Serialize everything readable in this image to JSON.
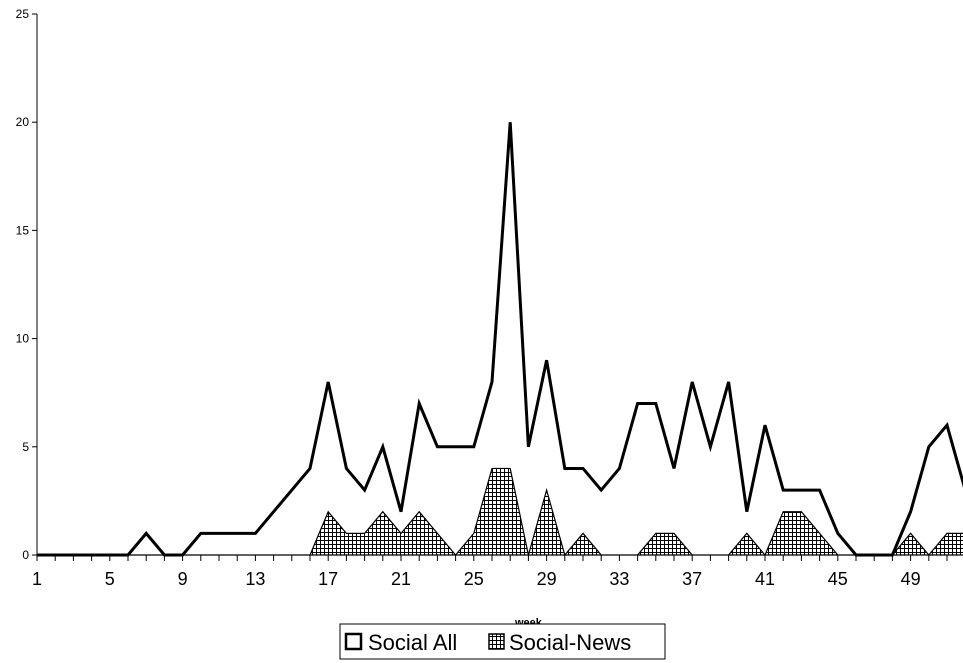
{
  "chart_data": {
    "type": "area",
    "title": "",
    "xlabel": "week",
    "ylabel": "",
    "ylim": [
      0,
      25
    ],
    "yticks": [
      0,
      5,
      10,
      15,
      20,
      25
    ],
    "x": [
      1,
      2,
      3,
      4,
      5,
      6,
      7,
      8,
      9,
      10,
      11,
      12,
      13,
      14,
      15,
      16,
      17,
      18,
      19,
      20,
      21,
      22,
      23,
      24,
      25,
      26,
      27,
      28,
      29,
      30,
      31,
      32,
      33,
      34,
      35,
      36,
      37,
      38,
      39,
      40,
      41,
      42,
      43,
      44,
      45,
      46,
      47,
      48,
      49,
      50,
      51,
      52
    ],
    "xtick_labels": [
      "1",
      "5",
      "9",
      "13",
      "17",
      "21",
      "25",
      "29",
      "33",
      "37",
      "41",
      "45",
      "49"
    ],
    "grid": false,
    "legend_position": "bottom",
    "series": [
      {
        "name": "Social All",
        "style": "line",
        "color": "#000000",
        "values": [
          0,
          0,
          0,
          0,
          0,
          0,
          1,
          0,
          0,
          1,
          1,
          1,
          1,
          2,
          3,
          4,
          8,
          4,
          3,
          5,
          2,
          7,
          5,
          5,
          5,
          8,
          20,
          5,
          9,
          4,
          4,
          3,
          4,
          7,
          7,
          4,
          8,
          5,
          8,
          2,
          6,
          3,
          3,
          3,
          1,
          0,
          0,
          0,
          2,
          5,
          6,
          3
        ]
      },
      {
        "name": "Social-News",
        "style": "crosshatch-area",
        "color": "#000000",
        "values": [
          0,
          0,
          0,
          0,
          0,
          0,
          0,
          0,
          0,
          0,
          0,
          0,
          0,
          0,
          0,
          0,
          2,
          1,
          1,
          2,
          1,
          2,
          1,
          0,
          1,
          4,
          4,
          0,
          3,
          0,
          1,
          0,
          0,
          0,
          1,
          1,
          0,
          0,
          0,
          1,
          0,
          2,
          2,
          1,
          0,
          0,
          0,
          0,
          1,
          0,
          1,
          1
        ]
      }
    ]
  }
}
